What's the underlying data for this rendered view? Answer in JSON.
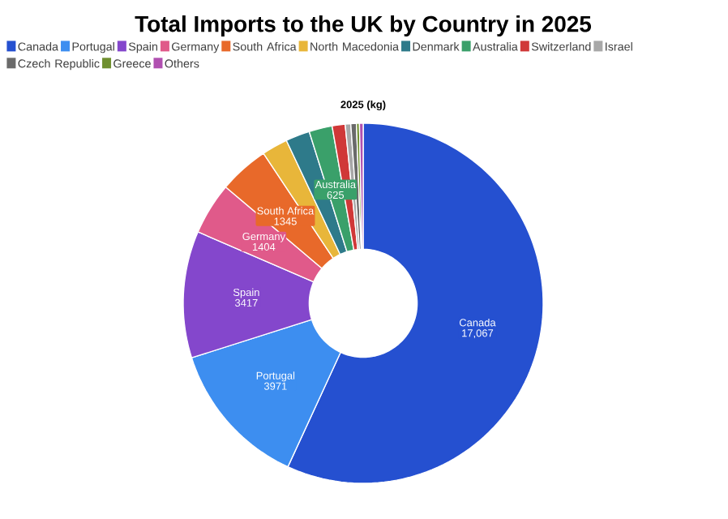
{
  "chart_data": {
    "type": "donut",
    "title": "Total Imports to the UK by Country in 2025",
    "subtitle": "2025 (kg)",
    "categories": [
      "Canada",
      "Portugal",
      "Spain",
      "Germany",
      "South Africa",
      "North Macedonia",
      "Denmark",
      "Australia",
      "Switzerland",
      "Israel",
      "Czech Republic",
      "Greece",
      "Others"
    ],
    "values": [
      17067,
      3971,
      3417,
      1404,
      1345,
      700,
      650,
      625,
      350,
      150,
      150,
      80,
      100
    ],
    "value_labels": [
      "17,067",
      "3971",
      "3417",
      "1404",
      "1345",
      null,
      null,
      "625",
      null,
      null,
      null,
      null,
      null
    ],
    "colors": [
      "#2550d0",
      "#3d8ef0",
      "#8447cc",
      "#e05a8a",
      "#e8692a",
      "#e8b63a",
      "#2e7a8a",
      "#3aa06a",
      "#d03838",
      "#a8a8a8",
      "#6a6a6a",
      "#6f8f2f",
      "#b050b0"
    ],
    "legend": "top"
  }
}
